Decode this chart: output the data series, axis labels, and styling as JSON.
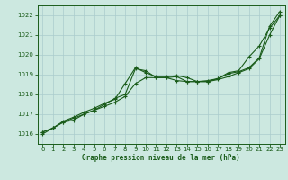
{
  "background_color": "#cce8e0",
  "grid_color": "#aacccc",
  "line_color": "#1a5c1a",
  "title": "Graphe pression niveau de la mer (hPa)",
  "ylim": [
    1015.5,
    1022.5
  ],
  "xlim": [
    -0.5,
    23.5
  ],
  "yticks": [
    1016,
    1017,
    1018,
    1019,
    1020,
    1021,
    1022
  ],
  "xticks": [
    0,
    1,
    2,
    3,
    4,
    5,
    6,
    7,
    8,
    9,
    10,
    11,
    12,
    13,
    14,
    15,
    16,
    17,
    18,
    19,
    20,
    21,
    22,
    23
  ],
  "series1": [
    1016.1,
    1016.3,
    1016.6,
    1016.7,
    1017.0,
    1017.2,
    1017.5,
    1017.8,
    1018.0,
    1019.3,
    1019.2,
    1018.85,
    1018.85,
    1018.9,
    1018.65,
    1018.65,
    1018.7,
    1018.8,
    1019.05,
    1019.15,
    1019.35,
    1019.85,
    1021.45,
    1022.2
  ],
  "series2": [
    1016.0,
    1016.3,
    1016.6,
    1016.8,
    1017.0,
    1017.2,
    1017.4,
    1017.6,
    1017.9,
    1018.55,
    1018.85,
    1018.85,
    1018.85,
    1018.7,
    1018.65,
    1018.65,
    1018.65,
    1018.75,
    1018.9,
    1019.1,
    1019.3,
    1019.8,
    1021.0,
    1022.0
  ],
  "series3": [
    1016.1,
    1016.3,
    1016.65,
    1016.85,
    1017.1,
    1017.3,
    1017.55,
    1017.75,
    1018.55,
    1019.35,
    1019.1,
    1018.9,
    1018.9,
    1018.95,
    1018.85,
    1018.65,
    1018.65,
    1018.8,
    1019.1,
    1019.2,
    1019.9,
    1020.45,
    1021.35,
    1022.0
  ],
  "tick_labelsize": 5.0,
  "xlabel_fontsize": 5.5,
  "linewidth": 0.8,
  "markersize": 3.5
}
